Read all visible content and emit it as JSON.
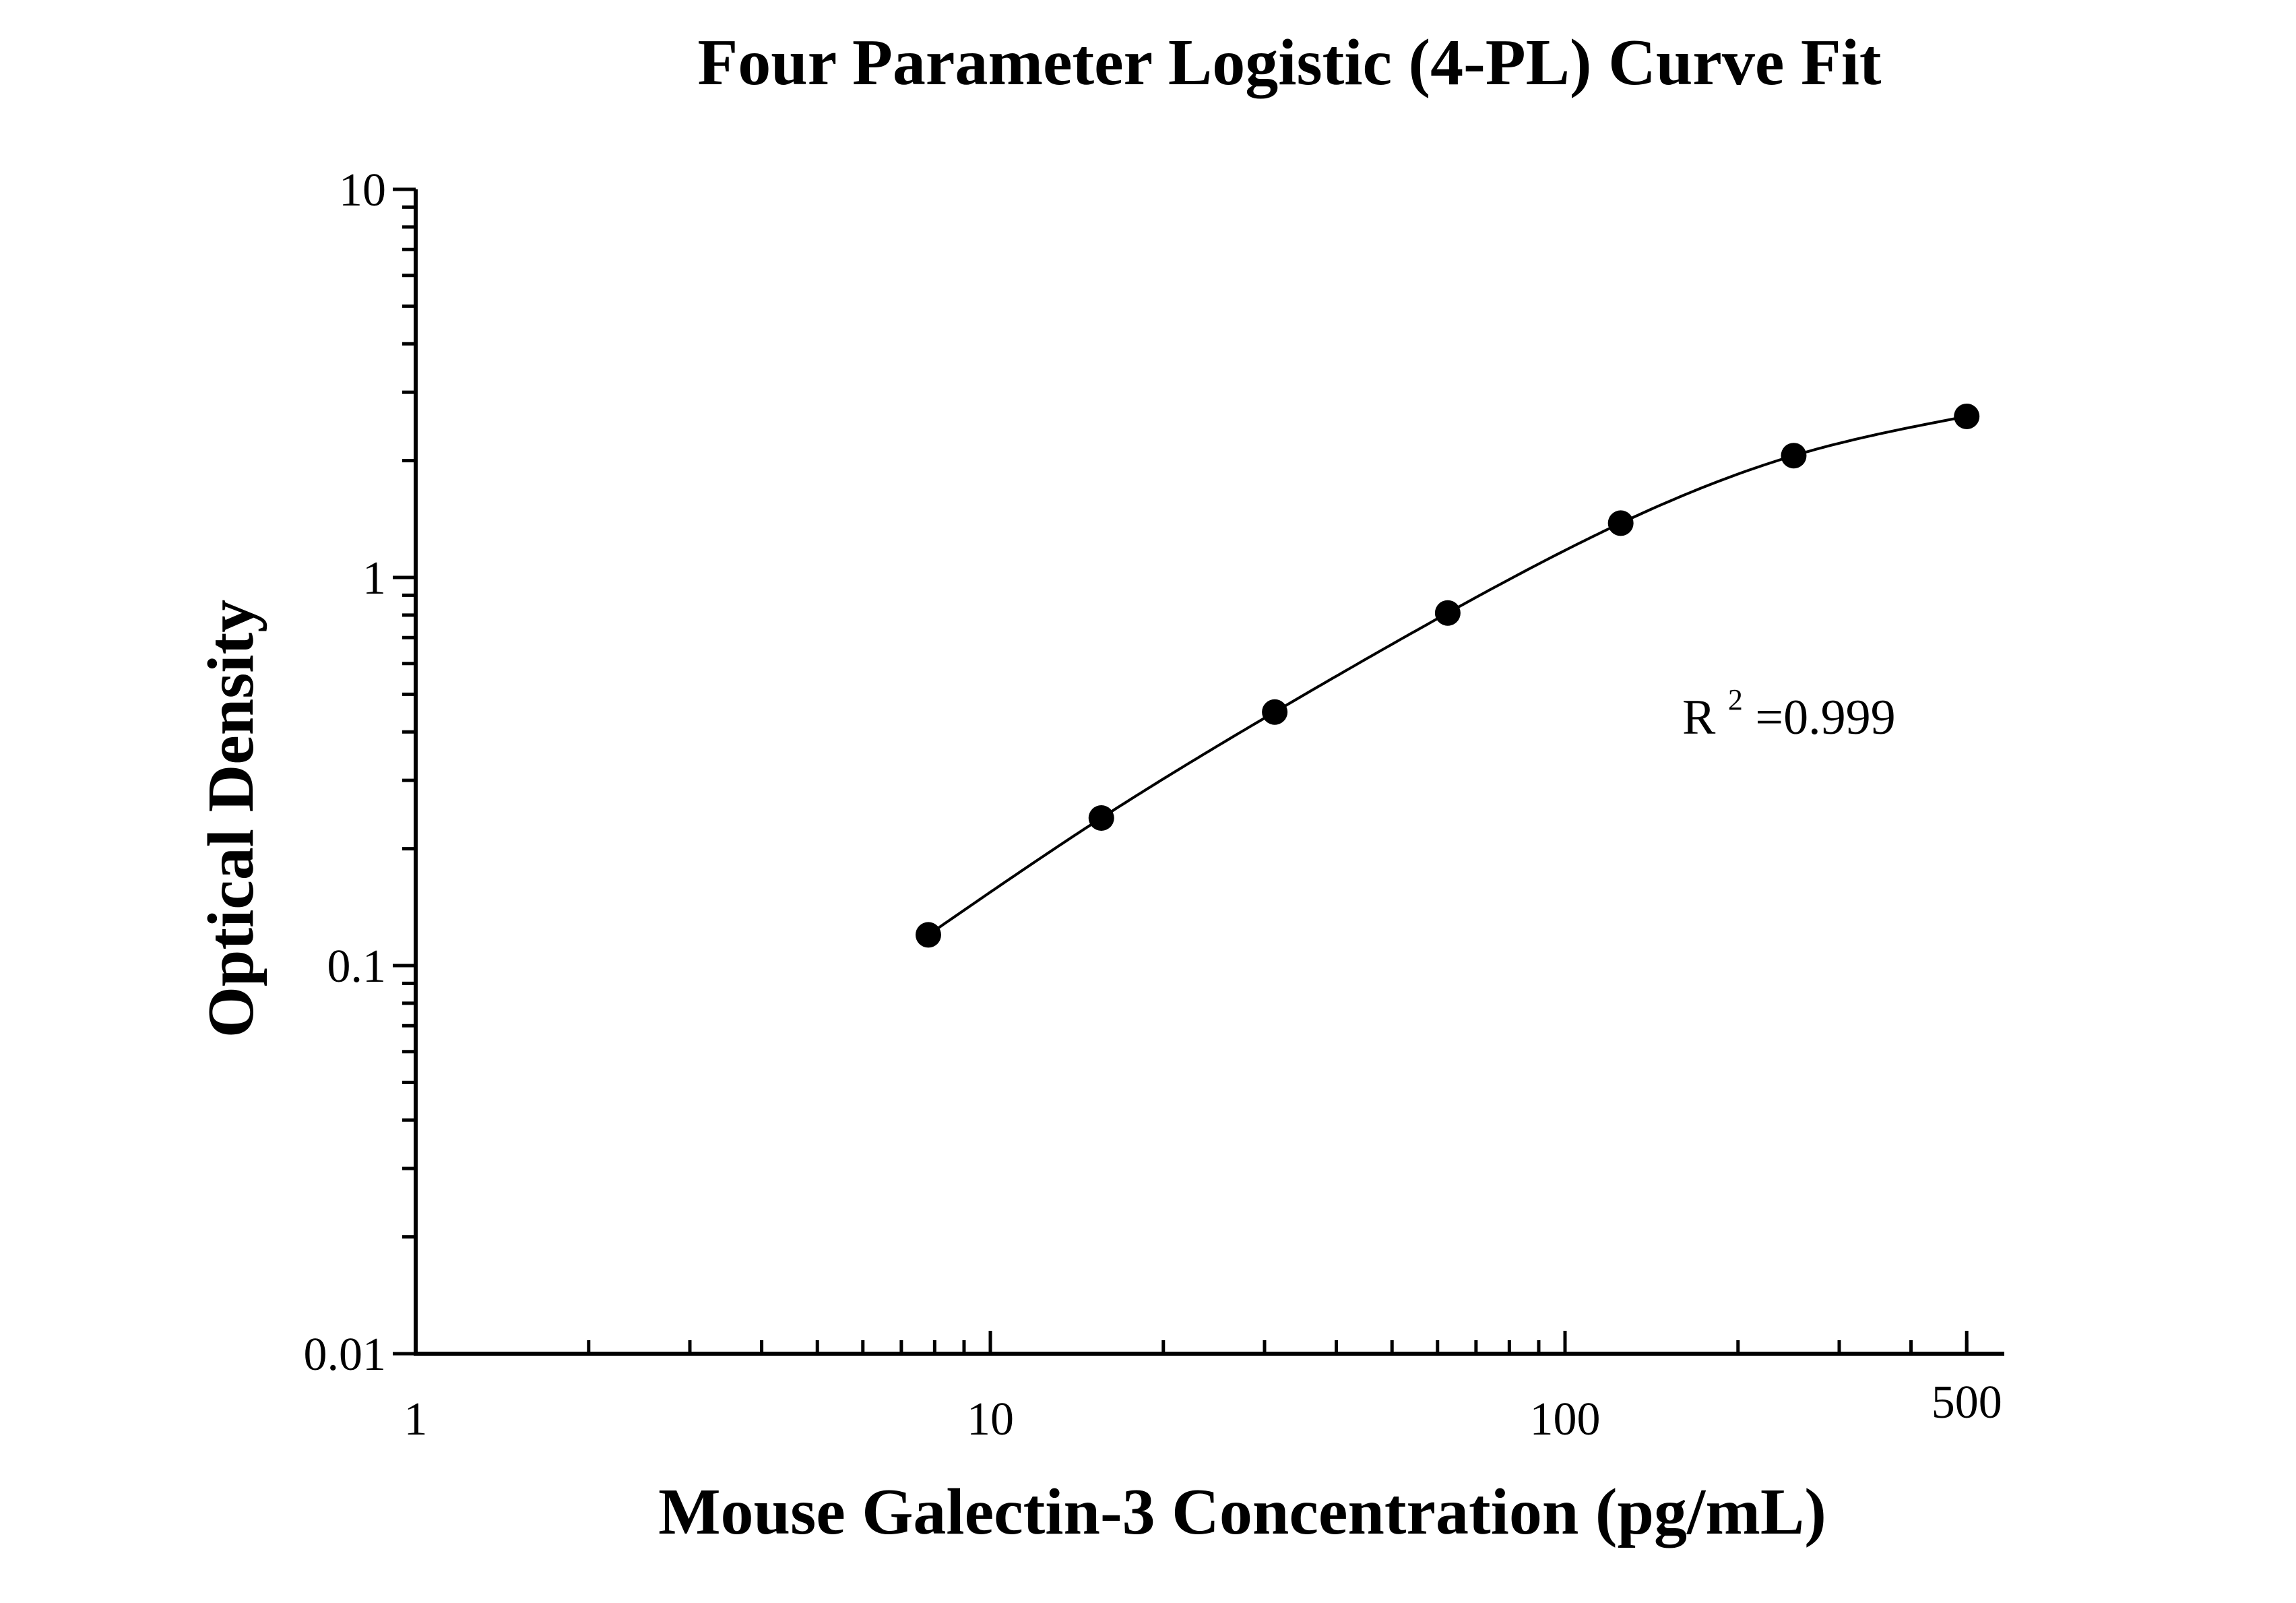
{
  "chart_data": {
    "type": "scatter",
    "title": "Four Parameter Logistic (4-PL) Curve Fit",
    "xlabel": "Mouse Galectin-3 Concentration (pg/mL)",
    "ylabel": "Optical Density",
    "xscale": "log",
    "yscale": "log",
    "xlim": [
      1,
      500
    ],
    "ylim": [
      0.01,
      10
    ],
    "x_tick_labels": [
      "1",
      "10",
      "100",
      "500"
    ],
    "x_tick_values": [
      1,
      10,
      100,
      500
    ],
    "y_tick_labels": [
      "0.01",
      "0.1",
      "1",
      "10"
    ],
    "y_tick_values": [
      0.01,
      0.1,
      1,
      10
    ],
    "grid": false,
    "legend": "none",
    "series": [
      {
        "x": [
          7.8,
          15.6,
          31.25,
          62.5,
          125,
          250,
          500
        ],
        "y": [
          0.12,
          0.24,
          0.45,
          0.81,
          1.38,
          2.06,
          2.6
        ],
        "marker": "circle",
        "color": "#000000"
      }
    ],
    "fit": {
      "model": "4-PL",
      "color": "#000000"
    },
    "annotation": {
      "base": "R",
      "sup": "2",
      "rest": "=0.999"
    }
  }
}
